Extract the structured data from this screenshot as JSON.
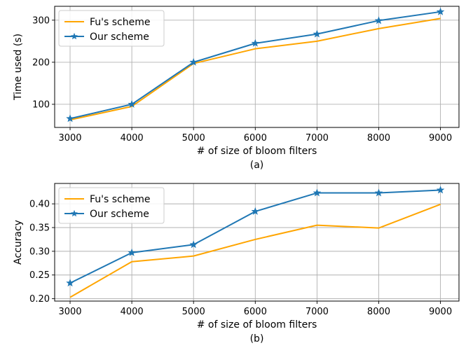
{
  "chart_data": [
    {
      "type": "line",
      "xlabel": "# of size of bloom filters",
      "ylabel": "Time used (s)",
      "caption": "(a)",
      "x": [
        3000,
        4000,
        5000,
        6000,
        7000,
        8000,
        9000
      ],
      "xlim": [
        2750,
        9300
      ],
      "ylim": [
        45,
        333
      ],
      "yticks": [
        100,
        200,
        300
      ],
      "ytick_labels": [
        "100",
        "200",
        "300"
      ],
      "xtick_labels": [
        "3000",
        "4000",
        "5000",
        "6000",
        "7000",
        "8000",
        "9000"
      ],
      "grid": true,
      "legend_position": "top-left",
      "series": [
        {
          "name": "Fu's scheme",
          "color": "#FFA500",
          "marker": "none",
          "values": [
            63,
            95,
            197,
            232,
            250,
            280,
            304
          ]
        },
        {
          "name": "Our scheme",
          "color": "#1F77B4",
          "marker": "star",
          "values": [
            66,
            100,
            200,
            245,
            267,
            299,
            320
          ]
        }
      ]
    },
    {
      "type": "line",
      "xlabel": "# of size of bloom filters",
      "ylabel": "Accuracy",
      "caption": "(b)",
      "x": [
        3000,
        4000,
        5000,
        6000,
        7000,
        8000,
        9000
      ],
      "xlim": [
        2750,
        9300
      ],
      "ylim": [
        0.195,
        0.443
      ],
      "yticks": [
        0.2,
        0.25,
        0.3,
        0.35,
        0.4
      ],
      "ytick_labels": [
        "0.20",
        "0.25",
        "0.30",
        "0.35",
        "0.40"
      ],
      "xtick_labels": [
        "3000",
        "4000",
        "5000",
        "6000",
        "7000",
        "8000",
        "9000"
      ],
      "grid": true,
      "legend_position": "top-left",
      "series": [
        {
          "name": "Fu's scheme",
          "color": "#FFA500",
          "marker": "none",
          "values": [
            0.203,
            0.278,
            0.29,
            0.325,
            0.355,
            0.349,
            0.399
          ]
        },
        {
          "name": "Our scheme",
          "color": "#1F77B4",
          "marker": "star",
          "values": [
            0.233,
            0.297,
            0.314,
            0.384,
            0.423,
            0.423,
            0.429
          ]
        }
      ]
    }
  ]
}
